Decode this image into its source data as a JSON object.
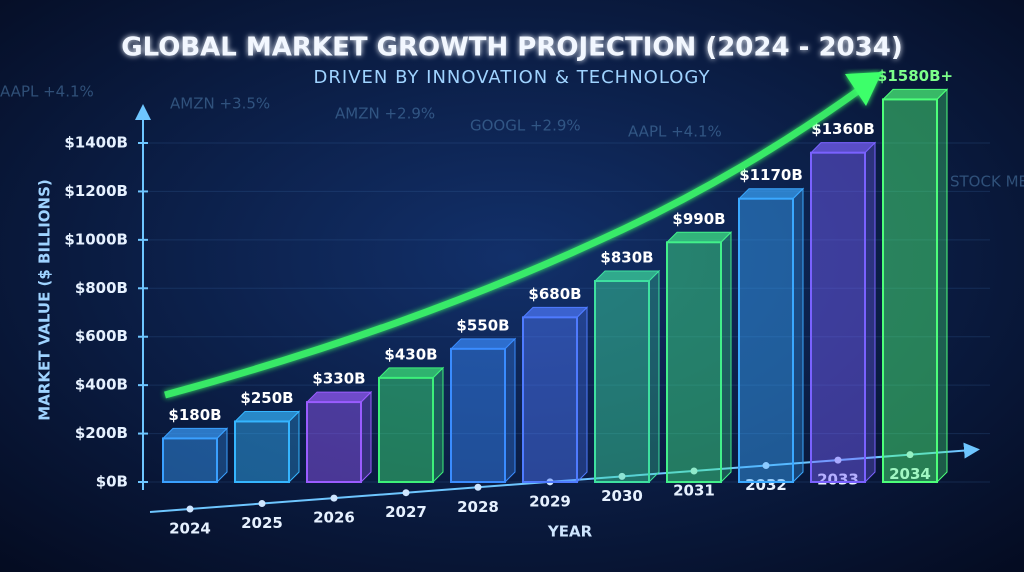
{
  "chart_data": {
    "type": "bar",
    "title": "GLOBAL MARKET GROWTH PROJECTION (2024 - 2034)",
    "subtitle": "DRIVEN BY INNOVATION & TECHNOLOGY",
    "y_label": "MARKET VALUE ($ BILLIONS)",
    "x_label": "YEAR",
    "categories": [
      "2024",
      "2025",
      "2026",
      "2027",
      "2028",
      "2029",
      "2030",
      "2031",
      "2032",
      "2033",
      "2034"
    ],
    "values": [
      180,
      250,
      330,
      430,
      550,
      680,
      830,
      990,
      1170,
      1360,
      1580
    ],
    "value_labels": [
      "$180B",
      "$250B",
      "$330B",
      "$430B",
      "$550B",
      "$680B",
      "$830B",
      "$990B",
      "$1170B",
      "$1360B",
      "$1580B+"
    ],
    "colors": [
      "#3aa0ff",
      "#35b5ff",
      "#9a5cff",
      "#3df07a",
      "#3a8cff",
      "#4f7bff",
      "#3ee0a0",
      "#42f08a",
      "#3aa8ff",
      "#7a62ff",
      "#4dff7a"
    ],
    "ylim": [
      0,
      1400
    ],
    "yticks": [
      {
        "value": 0,
        "label": "$0B"
      },
      {
        "value": 200,
        "label": "$200B"
      },
      {
        "value": 400,
        "label": "$400B"
      },
      {
        "value": 600,
        "label": "$600B"
      },
      {
        "value": 800,
        "label": "$800B"
      },
      {
        "value": 1000,
        "label": "$1000B"
      },
      {
        "value": 1200,
        "label": "$1200B"
      },
      {
        "value": 1400,
        "label": "$1400B"
      }
    ],
    "grid": true
  },
  "background_tickers": [
    "AAPL +4.1%",
    "AMZN +3.5%",
    "AMZN +2.9%",
    "GOOGL +2.9%",
    "AAPL +4.1%",
    "STOCK MERC"
  ]
}
